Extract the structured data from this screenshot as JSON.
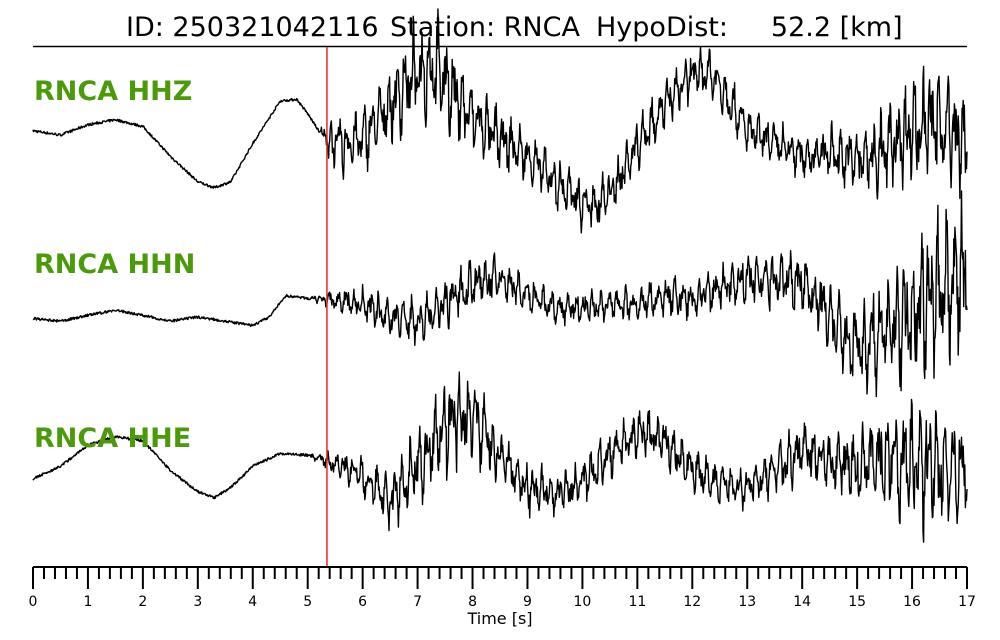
{
  "header": {
    "id_text": "ID: 250321042116",
    "station_text": "Station: RNCA",
    "dist_text": "HypoDist:     52.2 [km]"
  },
  "chart_data": {
    "type": "line",
    "xlabel": "Time [s]",
    "ylabel": "",
    "xlim": [
      0,
      17
    ],
    "major_ticks": [
      0,
      1,
      2,
      3,
      4,
      5,
      6,
      7,
      8,
      9,
      10,
      11,
      12,
      13,
      14,
      15,
      16,
      17
    ],
    "minor_tick_step": 0.2,
    "pick_time": 5.35,
    "pick_color": "#e8262a",
    "label_color": "#4a9a0a",
    "grid": false,
    "series": [
      {
        "name": "RNCA HHZ",
        "color": "#000000",
        "offset": 0,
        "x": [
          0,
          0.5,
          1,
          1.5,
          2,
          2.5,
          3,
          3.3,
          3.6,
          4,
          4.5,
          4.8,
          5,
          5.2,
          5.4,
          5.6,
          6,
          6.5,
          7,
          7.3,
          7.6,
          8,
          8.5,
          9,
          9.5,
          10,
          10.3,
          10.6,
          11,
          11.5,
          12,
          12.3,
          12.6,
          13,
          13.5,
          14,
          14.5,
          15,
          15.5,
          16,
          16.5,
          17
        ],
        "y": [
          0.05,
          0.0,
          0.12,
          0.18,
          0.1,
          -0.25,
          -0.55,
          -0.62,
          -0.55,
          -0.1,
          0.4,
          0.42,
          0.25,
          0.05,
          -0.08,
          -0.12,
          -0.05,
          0.35,
          0.75,
          0.82,
          0.55,
          0.2,
          -0.05,
          -0.25,
          -0.55,
          -0.8,
          -0.82,
          -0.6,
          -0.1,
          0.35,
          0.7,
          0.75,
          0.5,
          0.05,
          -0.1,
          -0.25,
          -0.2,
          -0.3,
          -0.2,
          0.1,
          0.15,
          -0.15
        ],
        "noise": [
          0,
          0,
          0,
          0,
          0,
          0,
          0,
          0,
          0,
          0,
          0,
          0,
          0,
          0,
          0.3,
          0.35,
          0.35,
          0.45,
          0.6,
          0.6,
          0.55,
          0.4,
          0.35,
          0.3,
          0.3,
          0.3,
          0.3,
          0.3,
          0.3,
          0.3,
          0.3,
          0.3,
          0.3,
          0.25,
          0.25,
          0.25,
          0.3,
          0.4,
          0.55,
          0.65,
          0.65,
          0.6
        ]
      },
      {
        "name": "RNCA HHN",
        "color": "#000000",
        "offset": 1,
        "x": [
          0,
          0.5,
          1,
          1.5,
          2,
          2.5,
          3,
          3.5,
          4,
          4.3,
          4.6,
          5,
          5.4,
          6,
          6.5,
          7,
          7.5,
          8,
          8.5,
          9,
          9.5,
          10,
          10.5,
          11,
          11.5,
          12,
          12.5,
          13,
          13.5,
          14,
          14.5,
          15,
          15.5,
          16,
          16.5,
          17
        ],
        "y": [
          -0.22,
          -0.25,
          -0.18,
          -0.12,
          -0.18,
          -0.25,
          -0.2,
          -0.25,
          -0.3,
          -0.2,
          0.05,
          0.02,
          0.0,
          -0.05,
          -0.2,
          -0.25,
          -0.05,
          0.2,
          0.25,
          0.05,
          -0.1,
          -0.1,
          -0.05,
          -0.05,
          0.05,
          0.0,
          0.15,
          0.25,
          0.25,
          0.2,
          -0.15,
          -0.6,
          -0.35,
          -0.2,
          0.2,
          0.3
        ],
        "noise": [
          0,
          0,
          0,
          0,
          0,
          0,
          0,
          0,
          0,
          0,
          0,
          0,
          0.12,
          0.2,
          0.25,
          0.3,
          0.3,
          0.3,
          0.25,
          0.2,
          0.2,
          0.2,
          0.2,
          0.2,
          0.25,
          0.25,
          0.25,
          0.3,
          0.35,
          0.35,
          0.45,
          0.55,
          0.6,
          0.8,
          1.0,
          0.9
        ]
      },
      {
        "name": "RNCA HHE",
        "color": "#000000",
        "offset": 2,
        "x": [
          0,
          0.5,
          1,
          1.5,
          2,
          2.5,
          3,
          3.3,
          3.6,
          4,
          4.5,
          5,
          5.4,
          6,
          6.5,
          7,
          7.5,
          8,
          8.5,
          9,
          9.5,
          10,
          10.5,
          11,
          11.5,
          12,
          12.5,
          13,
          13.5,
          14,
          14.5,
          15,
          15.5,
          16,
          16.5,
          17
        ],
        "y": [
          -0.2,
          -0.05,
          0.2,
          0.3,
          0.25,
          -0.1,
          -0.35,
          -0.42,
          -0.3,
          -0.05,
          0.1,
          0.08,
          0.0,
          -0.15,
          -0.45,
          -0.05,
          0.45,
          0.55,
          0.05,
          -0.3,
          -0.38,
          -0.25,
          0.1,
          0.35,
          0.25,
          -0.1,
          -0.25,
          -0.3,
          -0.1,
          0.15,
          0.0,
          -0.05,
          0.05,
          -0.05,
          0.0,
          -0.1
        ],
        "noise": [
          0,
          0,
          0,
          0,
          0,
          0,
          0,
          0,
          0,
          0,
          0,
          0,
          0.12,
          0.25,
          0.35,
          0.45,
          0.6,
          0.55,
          0.35,
          0.3,
          0.25,
          0.25,
          0.3,
          0.3,
          0.3,
          0.25,
          0.25,
          0.25,
          0.3,
          0.35,
          0.3,
          0.5,
          0.65,
          0.8,
          0.8,
          0.7
        ]
      }
    ]
  }
}
